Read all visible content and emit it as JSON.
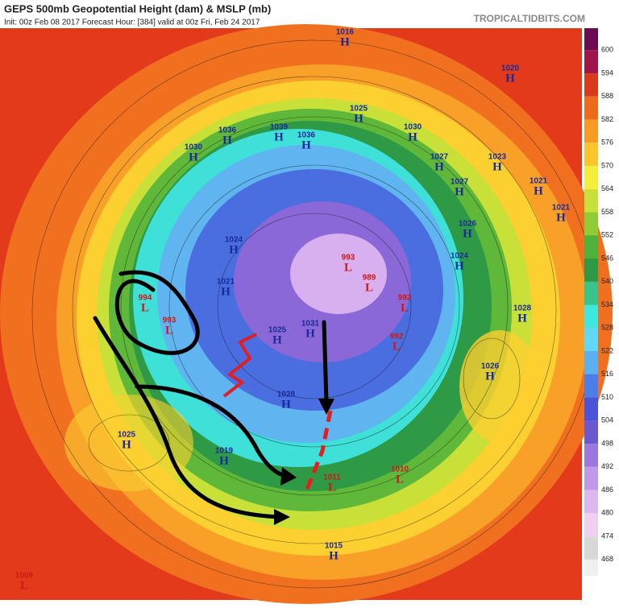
{
  "header": {
    "title": "GEPS 500mb Geopotential Height (dam) & MSLP (mb)",
    "subtitle": "Init: 00z Feb 08 2017   Forecast Hour: [384]   valid at 00z Fri, Feb 24 2017",
    "brand": "TROPICALTIDBITS.COM"
  },
  "colorbar": {
    "ticks": [
      600,
      594,
      588,
      582,
      576,
      570,
      564,
      558,
      552,
      546,
      540,
      534,
      528,
      522,
      516,
      510,
      504,
      498,
      492,
      486,
      480,
      474,
      468
    ],
    "colors": [
      "#6b0c52",
      "#a0154a",
      "#d83a1c",
      "#ee6a1c",
      "#f89a26",
      "#fcc52e",
      "#f5ee3a",
      "#c9e03a",
      "#8fcc35",
      "#4db33a",
      "#2e9a45",
      "#38c48a",
      "#3ee8e0",
      "#62d8f8",
      "#5ab0f0",
      "#4a7ee8",
      "#4a54d8",
      "#6a5acd",
      "#9a78e0",
      "#c09ae8",
      "#dcb8ee",
      "#f0d0f0",
      "#d8d8d8",
      "#f0f0f0"
    ]
  },
  "centers": [
    {
      "type": "H",
      "value": "1016"
    },
    {
      "type": "H",
      "value": "1020"
    },
    {
      "type": "H",
      "value": "1025"
    },
    {
      "type": "H",
      "value": "1030"
    },
    {
      "type": "H",
      "value": "1036"
    },
    {
      "type": "H",
      "value": "1039"
    },
    {
      "type": "H",
      "value": "1036"
    },
    {
      "type": "H",
      "value": "1030"
    },
    {
      "type": "H",
      "value": "1023"
    },
    {
      "type": "H",
      "value": "1027"
    },
    {
      "type": "H",
      "value": "1021"
    },
    {
      "type": "H",
      "value": "1027"
    },
    {
      "type": "H",
      "value": "1021"
    },
    {
      "type": "H",
      "value": "1026"
    },
    {
      "type": "H",
      "value": "1024"
    },
    {
      "type": "H",
      "value": "1024"
    },
    {
      "type": "H",
      "value": "1021"
    },
    {
      "type": "L",
      "value": "993"
    },
    {
      "type": "L",
      "value": "989"
    },
    {
      "type": "L",
      "value": "994"
    },
    {
      "type": "L",
      "value": "993"
    },
    {
      "type": "L",
      "value": "992"
    },
    {
      "type": "L",
      "value": "992"
    },
    {
      "type": "H",
      "value": "1028"
    },
    {
      "type": "H",
      "value": "1026"
    },
    {
      "type": "H",
      "value": "1025"
    },
    {
      "type": "H",
      "value": "1031"
    },
    {
      "type": "H",
      "value": "1028"
    },
    {
      "type": "H",
      "value": "1025"
    },
    {
      "type": "H",
      "value": "1019"
    },
    {
      "type": "L",
      "value": "1010"
    },
    {
      "type": "L",
      "value": "1011"
    },
    {
      "type": "H",
      "value": "1015"
    },
    {
      "type": "L",
      "value": "1009"
    }
  ]
}
